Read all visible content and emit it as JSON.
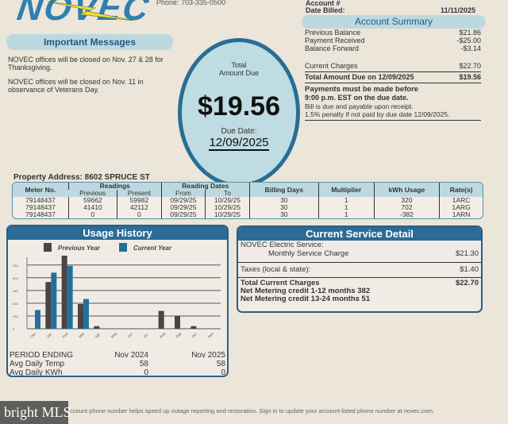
{
  "header": {
    "logo": "NOVEC",
    "phone": "Phone: 703-335-0500",
    "account_label": "Account #",
    "date_billed_label": "Date Billed:",
    "date_billed": "11/11/2025"
  },
  "messages": {
    "title": "Important Messages",
    "items": [
      "NOVEC offices will be closed on Nov. 27 & 28 for Thanksgiving.",
      "NOVEC offices will be closed on Nov. 11 in observance of Veterans Day."
    ]
  },
  "amount_due": {
    "label_line1": "Total",
    "label_line2": "Amount Due",
    "amount": "$19.56",
    "due_label": "Due Date:",
    "due_date": "12/09/2025"
  },
  "summary": {
    "title": "Account Summary",
    "rows": [
      {
        "label": "Previous Balance",
        "value": "$21.86"
      },
      {
        "label": "Payment Received",
        "value": "-$25.00"
      },
      {
        "label": "Balance Forward",
        "value": "-$3.14"
      }
    ],
    "current_label": "Current Charges",
    "current_value": "$22.70",
    "total_label": "Total Amount Due on 12/09/2025",
    "total_value": "$19.56",
    "note1": "Payments must be made before",
    "note2": "9:00 p.m. EST on the due date.",
    "note3": "Bill is due and payable upon receipt.",
    "note4": "1.5% penalty if not paid by due date 12/09/2025."
  },
  "property": {
    "label": "Property Address: 8602 SPRUCE ST"
  },
  "meter_table": {
    "headers": {
      "meter": "Meter No.",
      "readings": "Readings",
      "previous": "Previous",
      "present": "Present",
      "dates": "Reading Dates",
      "from": "From",
      "to": "To",
      "days": "Billing Days",
      "multiplier": "Multiplier",
      "kwh": "kWh Usage",
      "rate": "Rate(s)"
    },
    "rows": [
      [
        "79148437",
        "59662",
        "59982",
        "09/29/25",
        "10/29/25",
        "30",
        "1",
        "320",
        "1ARC"
      ],
      [
        "79148437",
        "41410",
        "42112",
        "09/29/25",
        "10/29/25",
        "30",
        "1",
        "702",
        "1ARG"
      ],
      [
        "79148437",
        "0",
        "0",
        "09/29/25",
        "10/29/25",
        "30",
        "1",
        "-382",
        "1ARN"
      ]
    ]
  },
  "usage": {
    "title": "Usage History",
    "period_label": "PERIOD ENDING",
    "temp_label": "Avg Daily Temp",
    "kwh_label": "Avg Daily KWh",
    "periods": [
      {
        "period": "Nov 2024",
        "temp": "58",
        "kwh": "0"
      },
      {
        "period": "Nov 2025",
        "temp": "58",
        "kwh": "0"
      }
    ]
  },
  "chart_data": {
    "type": "bar",
    "categories": [
      "Dec",
      "Jan",
      "Feb",
      "Mar",
      "Apr",
      "May",
      "Jun",
      "Jul",
      "Aug",
      "Sep",
      "Oct",
      "Nov"
    ],
    "series": [
      {
        "name": "Previous Year",
        "color": "#4a4446",
        "values": [
          0,
          550,
          860,
          290,
          30,
          0,
          0,
          0,
          210,
          150,
          30,
          0
        ]
      },
      {
        "name": "Current Year",
        "color": "#21719b",
        "values": [
          220,
          660,
          740,
          350,
          0,
          0,
          0,
          0,
          0,
          0,
          0,
          0
        ]
      }
    ],
    "yticks": [
      0,
      150,
      300,
      450,
      600,
      750
    ],
    "ylim": [
      0,
      900
    ],
    "grid": true,
    "legend": "top"
  },
  "service": {
    "title": "Current Service Detail",
    "electric_label": "NOVEC Electric Service:",
    "monthly_label": "Monthly Service Charge",
    "monthly_value": "$21.30",
    "taxes_label": "Taxes (local & state):",
    "taxes_value": "$1.40",
    "total_label": "Total Current Charges",
    "total_value": "$22.70",
    "credit1": "Net Metering credit 1-12 months 382",
    "credit2": "Net Metering credit 13-24 months 51"
  },
  "footer": {
    "text": "ccount phone number helps speed up outage reporting and restoration. Sign in to update your account-listed phone number at novec.com.",
    "watermark": "bright MLS"
  }
}
